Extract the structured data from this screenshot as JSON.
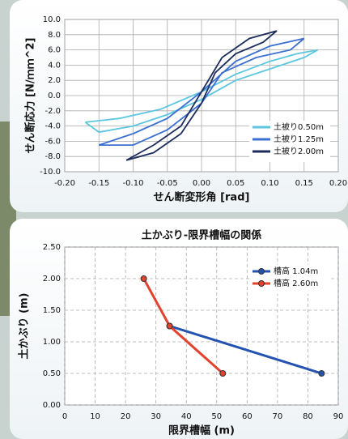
{
  "chart_data": [
    {
      "type": "line",
      "xlabel": "せん断変形角 [rad]",
      "ylabel": "せん断応力 [N/ｍｍ^2]",
      "xlim": [
        -0.2,
        0.2
      ],
      "xticks": [
        {
          "value": -0.2,
          "label": "-0.20"
        },
        {
          "value": -0.15,
          "label": "-0.15"
        },
        {
          "value": -0.1,
          "label": "-0.10"
        },
        {
          "value": -0.05,
          "label": "-0.05"
        },
        {
          "value": 0,
          "label": "0.00"
        },
        {
          "value": 0.05,
          "label": "0.05"
        },
        {
          "value": 0.1,
          "label": "0.10"
        },
        {
          "value": 0.15,
          "label": "0.15"
        },
        {
          "value": 0.2,
          "label": "0.20"
        }
      ],
      "ylim": [
        -10,
        10
      ],
      "yticks": [
        {
          "value": -10,
          "label": "-10.0"
        },
        {
          "value": -8,
          "label": "-8.0"
        },
        {
          "value": -6,
          "label": "-6.0"
        },
        {
          "value": -4,
          "label": "-4.0"
        },
        {
          "value": -2,
          "label": "-2.0"
        },
        {
          "value": 0,
          "label": "0.0"
        },
        {
          "value": 2,
          "label": "2.0"
        },
        {
          "value": 4,
          "label": "4.0"
        },
        {
          "value": 6,
          "label": "6.0"
        },
        {
          "value": 8,
          "label": "8.0"
        },
        {
          "value": 10,
          "label": "10.0"
        }
      ],
      "grid": true,
      "legend": "lower right",
      "series": [
        {
          "name": "土被り0.50m",
          "color": "#5cc6e0",
          "x": [
            -0.17,
            -0.12,
            -0.06,
            0,
            0.05,
            0.1,
            0.14,
            0.17,
            0.15,
            0.1,
            0.05,
            0,
            -0.05,
            -0.1,
            -0.15,
            -0.17
          ],
          "values": [
            -3.5,
            -3.0,
            -1.8,
            0.5,
            2.8,
            4.5,
            5.5,
            6.0,
            5.0,
            3.5,
            2.0,
            -0.5,
            -2.5,
            -4.0,
            -4.8,
            -3.5
          ]
        },
        {
          "name": "土被り1.25m",
          "color": "#3b6fd0",
          "x": [
            -0.15,
            -0.1,
            -0.05,
            0,
            0.05,
            0.1,
            0.15,
            0.13,
            0.08,
            0.03,
            0,
            -0.05,
            -0.1,
            -0.15
          ],
          "values": [
            -6.5,
            -5.0,
            -3.0,
            0.5,
            4.5,
            6.5,
            7.5,
            6.0,
            5.0,
            3.0,
            -1.0,
            -4.5,
            -6.5,
            -6.5
          ]
        },
        {
          "name": "土被り2.00m",
          "color": "#1c2c5c",
          "x": [
            -0.11,
            -0.07,
            -0.03,
            0,
            0.03,
            0.07,
            0.11,
            0.09,
            0.05,
            0.02,
            0,
            -0.03,
            -0.07,
            -0.11
          ],
          "values": [
            -8.5,
            -6.5,
            -4.0,
            0.5,
            5.0,
            7.5,
            8.5,
            7.0,
            5.5,
            3.0,
            -1.0,
            -5.0,
            -7.5,
            -8.5
          ]
        }
      ]
    },
    {
      "type": "line",
      "title": "土かぶり-限界槽幅の関係",
      "xlabel": "限界槽幅 (m)",
      "ylabel": "土かぶり (m)",
      "xlim": [
        0,
        90
      ],
      "xticks": [
        0,
        10,
        20,
        30,
        40,
        50,
        60,
        70,
        80,
        90
      ],
      "ylim": [
        0,
        2.5
      ],
      "yticks": [
        {
          "value": 0,
          "label": "0.00"
        },
        {
          "value": 0.5,
          "label": "0.50"
        },
        {
          "value": 1,
          "label": "1.00"
        },
        {
          "value": 1.5,
          "label": "1.50"
        },
        {
          "value": 2,
          "label": "2.00"
        },
        {
          "value": 2.5,
          "label": "2.50"
        }
      ],
      "grid": true,
      "markers": true,
      "legend": "upper right",
      "series": [
        {
          "name": "槽高 1.04m",
          "color": "#2352b0",
          "x": [
            34.5,
            84.5
          ],
          "values": [
            1.25,
            0.5
          ]
        },
        {
          "name": "槽高 2.60m",
          "color": "#e2432f",
          "x": [
            26,
            34.5,
            52
          ],
          "values": [
            2.0,
            1.25,
            0.5
          ]
        }
      ]
    }
  ]
}
